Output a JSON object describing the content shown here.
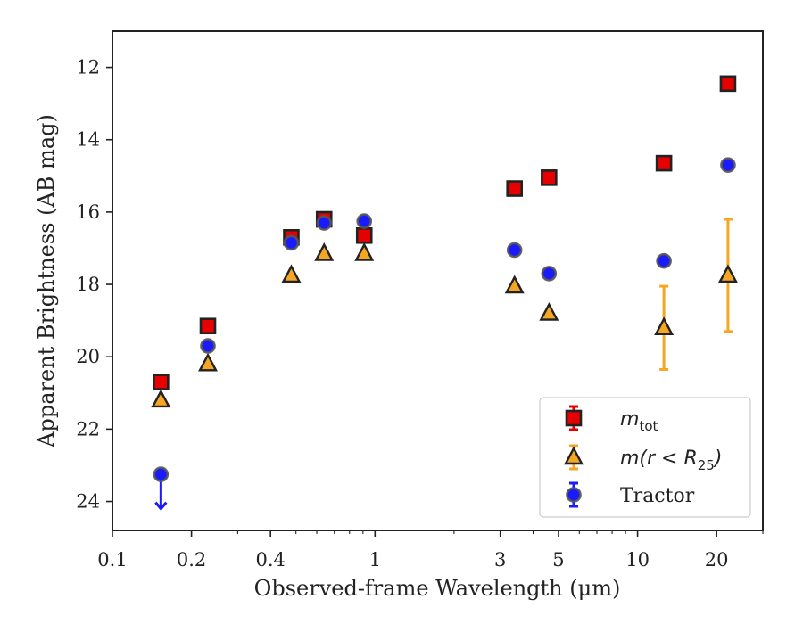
{
  "chart_data": {
    "type": "scatter",
    "xlabel": "Observed-frame Wavelength (μm)",
    "ylabel": "Apparent Brightness (AB mag)",
    "xscale": "log",
    "xlim": [
      0.1,
      30
    ],
    "ylim": [
      24.8,
      11.0
    ],
    "y_inverted": true,
    "x_ticks": [
      {
        "value": 0.1,
        "label": "0.1"
      },
      {
        "value": 0.2,
        "label": "0.2"
      },
      {
        "value": 0.4,
        "label": "0.4"
      },
      {
        "value": 1,
        "label": "1"
      },
      {
        "value": 3,
        "label": "3"
      },
      {
        "value": 5,
        "label": "5"
      },
      {
        "value": 10,
        "label": "10"
      },
      {
        "value": 20,
        "label": "20"
      }
    ],
    "x_minor_ticks": [
      0.3,
      0.5,
      0.6,
      0.7,
      0.8,
      0.9,
      2,
      4,
      6,
      7,
      8,
      9,
      30
    ],
    "y_ticks": [
      {
        "value": 12,
        "label": "12"
      },
      {
        "value": 14,
        "label": "14"
      },
      {
        "value": 16,
        "label": "16"
      },
      {
        "value": 18,
        "label": "18"
      },
      {
        "value": 20,
        "label": "20"
      },
      {
        "value": 22,
        "label": "22"
      },
      {
        "value": 24,
        "label": "24"
      }
    ],
    "legend_position": "lower-right",
    "series": [
      {
        "key": "mtot",
        "legend_main": "m",
        "legend_sub": "tot",
        "marker": "square",
        "fill": "#e60000",
        "edge": "#222222",
        "errcolor": "#e60000",
        "points": [
          {
            "x": 0.153,
            "y": 20.7
          },
          {
            "x": 0.231,
            "y": 19.15
          },
          {
            "x": 0.48,
            "y": 16.7
          },
          {
            "x": 0.64,
            "y": 16.2
          },
          {
            "x": 0.91,
            "y": 16.65
          },
          {
            "x": 3.4,
            "y": 15.35
          },
          {
            "x": 4.6,
            "y": 15.05
          },
          {
            "x": 12.6,
            "y": 14.65
          },
          {
            "x": 22.1,
            "y": 12.45
          }
        ]
      },
      {
        "key": "mr25",
        "legend_main": "m(r < R",
        "legend_sub": "25",
        "legend_tail": ")",
        "marker": "triangle",
        "fill": "#f5a623",
        "edge": "#222222",
        "errcolor": "#f5a623",
        "points": [
          {
            "x": 0.153,
            "y": 21.2
          },
          {
            "x": 0.231,
            "y": 20.2
          },
          {
            "x": 0.48,
            "y": 17.75
          },
          {
            "x": 0.64,
            "y": 17.15
          },
          {
            "x": 0.91,
            "y": 17.15
          },
          {
            "x": 3.4,
            "y": 18.05
          },
          {
            "x": 4.6,
            "y": 18.8
          },
          {
            "x": 12.6,
            "y": 19.2,
            "err_low": 18.05,
            "err_high": 20.35
          },
          {
            "x": 22.1,
            "y": 17.75,
            "err_low": 16.2,
            "err_high": 19.3
          }
        ]
      },
      {
        "key": "tractor",
        "legend_main": "Tractor",
        "marker": "circle",
        "fill": "#1a1aff",
        "edge": "#555555",
        "errcolor": "#1a1aff",
        "points": [
          {
            "x": 0.153,
            "y": 23.25,
            "upper_limit": true,
            "arrow_to": 24.2
          },
          {
            "x": 0.231,
            "y": 19.7
          },
          {
            "x": 0.48,
            "y": 16.85
          },
          {
            "x": 0.64,
            "y": 16.3
          },
          {
            "x": 0.91,
            "y": 16.25
          },
          {
            "x": 3.4,
            "y": 17.05
          },
          {
            "x": 4.6,
            "y": 17.7
          },
          {
            "x": 12.6,
            "y": 17.35
          },
          {
            "x": 22.1,
            "y": 14.7
          }
        ]
      }
    ]
  }
}
